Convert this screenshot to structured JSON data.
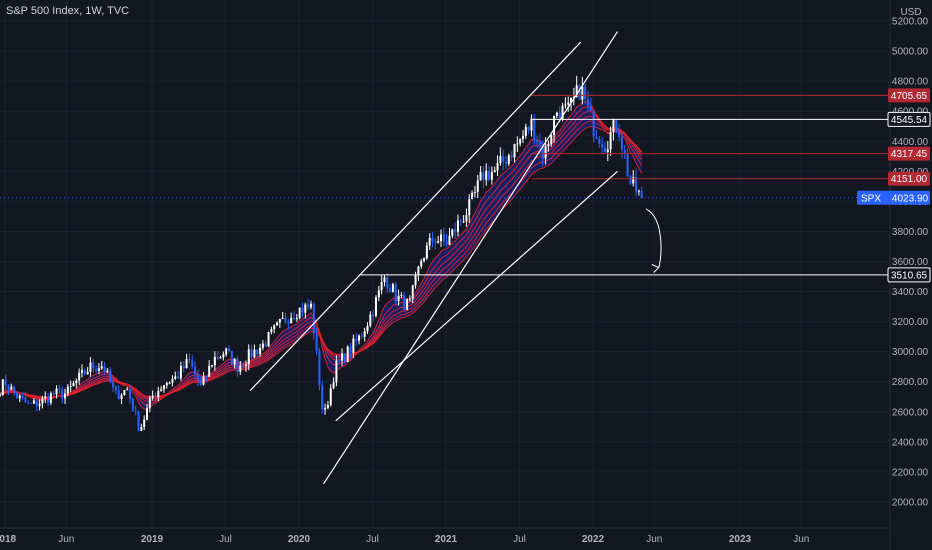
{
  "header": {
    "title": "S&P 500 Index, 1W, TVC",
    "currency": "USD"
  },
  "chart_data": {
    "type": "candlestick",
    "symbol": "SPX",
    "timeframe": "1W",
    "source": "TVC",
    "last_price": 4023.9,
    "last_price_label": "SPX",
    "ylim": [
      1900,
      5300
    ],
    "y_ticks": [
      2000,
      2200,
      2400,
      2600,
      2800,
      3000,
      3200,
      3400,
      3600,
      3800,
      4000,
      4200,
      4400,
      4600,
      4800,
      5000,
      5200
    ],
    "y_tick_labels": [
      "2000.00",
      "2200.00",
      "2400.00",
      "2600.00",
      "2800.00",
      "3000.00",
      "3200.00",
      "3400.00",
      "3600.00",
      "3800.00",
      "4000.00",
      "4200.00",
      "4400.00",
      "4600.00",
      "4800.00",
      "5000.00",
      "5200.00"
    ],
    "x_range": [
      "2018-01",
      "2023-10"
    ],
    "x_ticks": [
      {
        "date": "2018-01",
        "label": "2018",
        "bold": true
      },
      {
        "date": "2018-06",
        "label": "Jun",
        "bold": false
      },
      {
        "date": "2019-01",
        "label": "2019",
        "bold": true
      },
      {
        "date": "2019-07",
        "label": "Jul",
        "bold": false
      },
      {
        "date": "2020-01",
        "label": "2020",
        "bold": true
      },
      {
        "date": "2020-07",
        "label": "Jul",
        "bold": false
      },
      {
        "date": "2021-01",
        "label": "2021",
        "bold": true
      },
      {
        "date": "2021-07",
        "label": "Jul",
        "bold": false
      },
      {
        "date": "2022-01",
        "label": "2022",
        "bold": true
      },
      {
        "date": "2022-06",
        "label": "Jun",
        "bold": false
      },
      {
        "date": "2023-01",
        "label": "2023",
        "bold": true
      },
      {
        "date": "2023-06",
        "label": "Jun",
        "bold": false
      }
    ],
    "price_path": [
      [
        "2017-12",
        2690
      ],
      [
        "2018-01",
        2800
      ],
      [
        "2018-02",
        2700
      ],
      [
        "2018-03",
        2640
      ],
      [
        "2018-04",
        2670
      ],
      [
        "2018-05",
        2720
      ],
      [
        "2018-06",
        2720
      ],
      [
        "2018-07",
        2820
      ],
      [
        "2018-08",
        2900
      ],
      [
        "2018-09",
        2910
      ],
      [
        "2018-10",
        2710
      ],
      [
        "2018-11",
        2750
      ],
      [
        "2018-12",
        2480
      ],
      [
        "2019-01",
        2700
      ],
      [
        "2019-02",
        2790
      ],
      [
        "2019-03",
        2830
      ],
      [
        "2019-04",
        2940
      ],
      [
        "2019-05",
        2760
      ],
      [
        "2019-06",
        2950
      ],
      [
        "2019-07",
        3000
      ],
      [
        "2019-08",
        2900
      ],
      [
        "2019-09",
        2980
      ],
      [
        "2019-10",
        3040
      ],
      [
        "2019-11",
        3140
      ],
      [
        "2019-12",
        3230
      ],
      [
        "2020-01",
        3280
      ],
      [
        "2020-02",
        3300
      ],
      [
        "2020-03",
        2550
      ],
      [
        "2020-04",
        2900
      ],
      [
        "2020-05",
        3000
      ],
      [
        "2020-06",
        3100
      ],
      [
        "2020-07",
        3270
      ],
      [
        "2020-08",
        3500
      ],
      [
        "2020-09",
        3360
      ],
      [
        "2020-10",
        3300
      ],
      [
        "2020-11",
        3620
      ],
      [
        "2020-12",
        3760
      ],
      [
        "2021-01",
        3720
      ],
      [
        "2021-02",
        3850
      ],
      [
        "2021-03",
        3970
      ],
      [
        "2021-04",
        4180
      ],
      [
        "2021-05",
        4200
      ],
      [
        "2021-06",
        4300
      ],
      [
        "2021-07",
        4400
      ],
      [
        "2021-08",
        4520
      ],
      [
        "2021-09",
        4300
      ],
      [
        "2021-10",
        4600
      ],
      [
        "2021-11",
        4600
      ],
      [
        "2021-12",
        4760
      ],
      [
        "2022-01",
        4500
      ],
      [
        "2022-02",
        4380
      ],
      [
        "2022-03",
        4530
      ],
      [
        "2022-04",
        4130
      ],
      [
        "2022-05",
        4023
      ]
    ],
    "levels": [
      {
        "value": 4705.65,
        "label": "4705.65",
        "color": "#b22833",
        "x_start": "2021-08"
      },
      {
        "value": 4545.54,
        "label": "4545.54",
        "color": "#ffffff",
        "x_start": "2021-08"
      },
      {
        "value": 4317.45,
        "label": "4317.45",
        "color": "#b22833",
        "x_start": "2021-08"
      },
      {
        "value": 4151.0,
        "label": "4151.00",
        "color": "#b22833",
        "x_start": "2021-08"
      },
      {
        "value": 3510.65,
        "label": "3510.65",
        "color": "#ffffff",
        "x_start": "2020-06"
      }
    ],
    "channel_lines": [
      {
        "from": [
          "2020-03",
          2120
        ],
        "to": [
          "2022-03",
          5130
        ]
      },
      {
        "from": [
          "2019-09",
          2740
        ],
        "to": [
          "2021-12",
          5060
        ]
      },
      {
        "from": [
          "2020-04",
          2540
        ],
        "to": [
          "2022-03",
          4200
        ]
      }
    ],
    "projection_arrow": {
      "from": [
        "2022-05",
        3950
      ],
      "to": [
        "2022-08",
        3560
      ]
    },
    "colors": {
      "background": "#131722",
      "candle_up": "#ffffff",
      "candle_down": "#2962ff",
      "ma_ribbon": "#e0202a",
      "ribbon_fill": "#1a2a9c",
      "last_price_tag": "#2962ff",
      "text": "#b2b5be"
    }
  }
}
